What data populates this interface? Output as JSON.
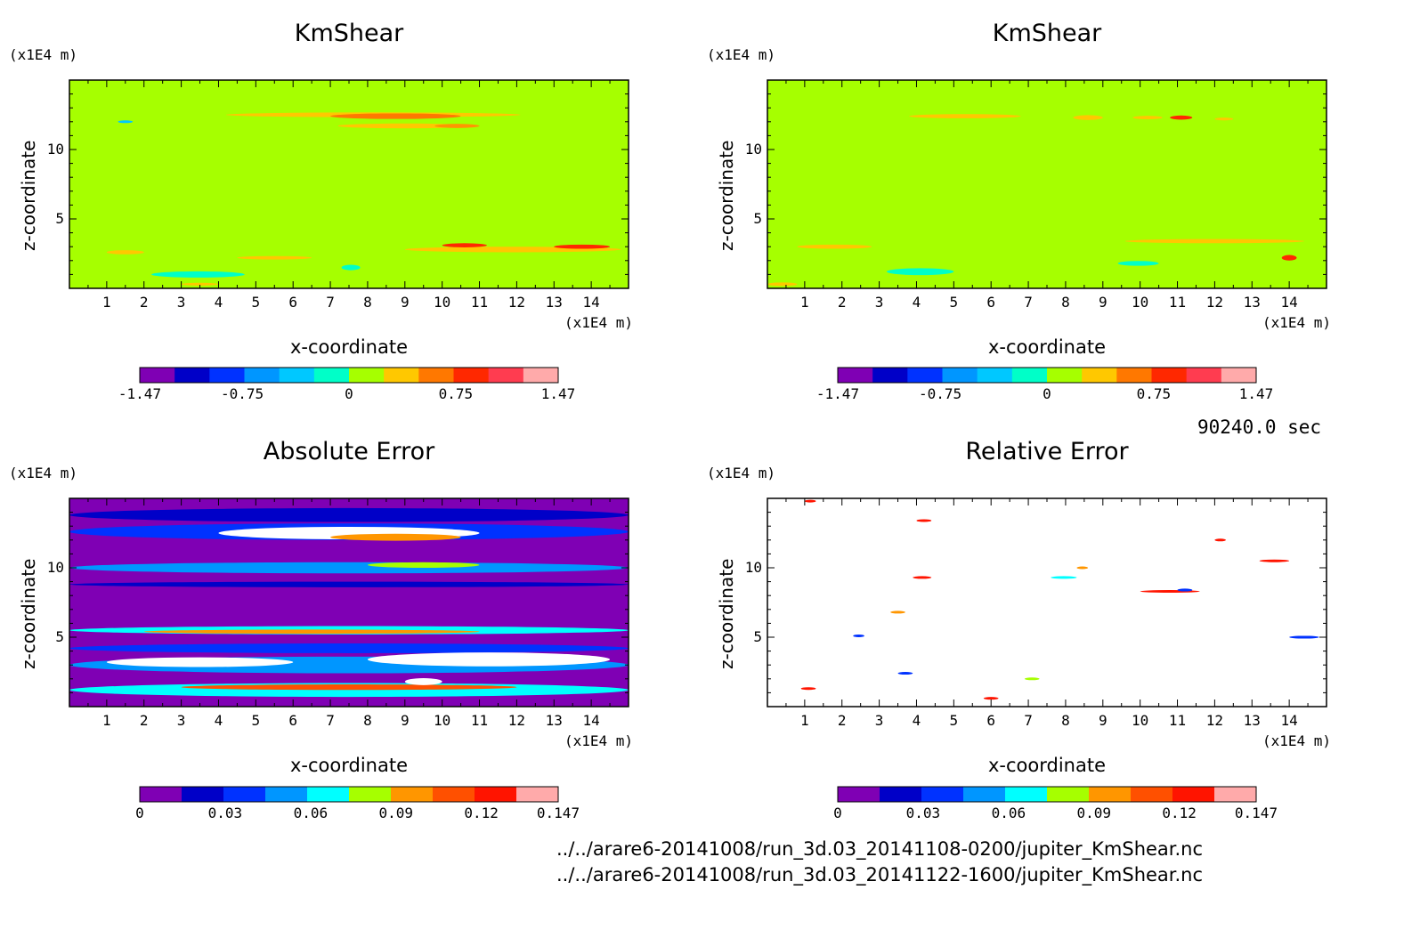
{
  "colors": {
    "background": "#a6ff00",
    "cb_top": [
      "#7f00b4",
      "#0000c8",
      "#0032ff",
      "#0096ff",
      "#00c8ff",
      "#00ffc8",
      "#a6ff00",
      "#ffc800",
      "#ff7800",
      "#ff2800",
      "#ff3c50",
      "#ffaaaa"
    ],
    "cb_bottom": [
      "#7f00b4",
      "#0000c8",
      "#0032ff",
      "#0096ff",
      "#00ffff",
      "#a6ff00",
      "#ff9600",
      "#ff5000",
      "#ff1400",
      "#ffaaaa"
    ]
  },
  "chart_data": [
    {
      "type": "heatmap",
      "title": "KmShear",
      "xlabel": "x-coordinate",
      "ylabel": "z-coordinate",
      "x_unit": "(x1E4 m)",
      "y_unit": "(x1E4 m)",
      "xlim": [
        0,
        15
      ],
      "ylim": [
        0,
        15
      ],
      "xticks": [
        "1",
        "2",
        "3",
        "4",
        "5",
        "6",
        "7",
        "8",
        "9",
        "10",
        "11",
        "12",
        "13",
        "14"
      ],
      "yticks": [
        "5",
        "10"
      ],
      "colorbar": {
        "min": -1.47,
        "max": 1.47,
        "labels": [
          "-1.47",
          "-0.75",
          "0",
          "0.75",
          "1.47"
        ]
      }
    },
    {
      "type": "heatmap",
      "title": "KmShear",
      "xlabel": "x-coordinate",
      "ylabel": "z-coordinate",
      "x_unit": "(x1E4 m)",
      "y_unit": "(x1E4 m)",
      "xlim": [
        0,
        15
      ],
      "ylim": [
        0,
        15
      ],
      "xticks": [
        "1",
        "2",
        "3",
        "4",
        "5",
        "6",
        "7",
        "8",
        "9",
        "10",
        "11",
        "12",
        "13",
        "14"
      ],
      "yticks": [
        "5",
        "10"
      ],
      "colorbar": {
        "min": -1.47,
        "max": 1.47,
        "labels": [
          "-1.47",
          "-0.75",
          "0",
          "0.75",
          "1.47"
        ]
      }
    },
    {
      "type": "heatmap",
      "title": "Absolute Error",
      "xlabel": "x-coordinate",
      "ylabel": "z-coordinate",
      "x_unit": "(x1E4 m)",
      "y_unit": "(x1E4 m)",
      "xlim": [
        0,
        15
      ],
      "ylim": [
        0,
        15
      ],
      "xticks": [
        "1",
        "2",
        "3",
        "4",
        "5",
        "6",
        "7",
        "8",
        "9",
        "10",
        "11",
        "12",
        "13",
        "14"
      ],
      "yticks": [
        "5",
        "10"
      ],
      "colorbar": {
        "min": 0,
        "max": 0.147,
        "labels": [
          "0",
          "0.03",
          "0.06",
          "0.09",
          "0.12",
          "0.147"
        ]
      }
    },
    {
      "type": "heatmap",
      "title": "Relative Error",
      "xlabel": "x-coordinate",
      "ylabel": "z-coordinate",
      "x_unit": "(x1E4 m)",
      "y_unit": "(x1E4 m)",
      "xlim": [
        0,
        15
      ],
      "ylim": [
        0,
        15
      ],
      "xticks": [
        "1",
        "2",
        "3",
        "4",
        "5",
        "6",
        "7",
        "8",
        "9",
        "10",
        "11",
        "12",
        "13",
        "14"
      ],
      "yticks": [
        "5",
        "10"
      ],
      "colorbar": {
        "min": 0,
        "max": 0.147,
        "labels": [
          "0",
          "0.03",
          "0.06",
          "0.09",
          "0.12",
          "0.147"
        ]
      }
    }
  ],
  "time_label": "90240.0 sec",
  "files": [
    "../../arare6-20141008/run_3d.03_20141108-0200/jupiter_KmShear.nc",
    "../../arare6-20141008/run_3d.03_20141122-1600/jupiter_KmShear.nc"
  ]
}
